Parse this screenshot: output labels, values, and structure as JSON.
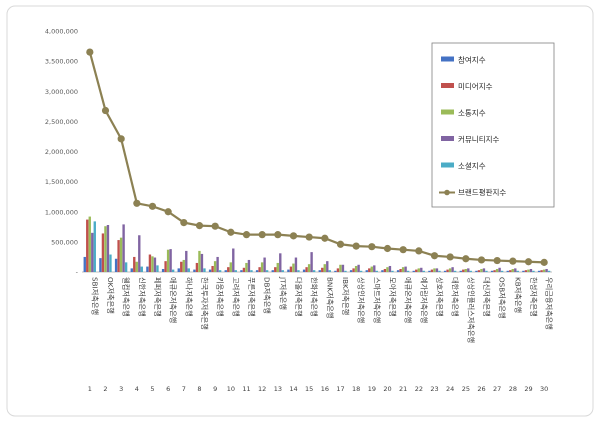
{
  "chart_data": {
    "type": "bar",
    "title": "",
    "xlabel": "",
    "ylabel": "",
    "ylim": [
      0,
      4000000
    ],
    "yticks": [
      "-",
      "500,000",
      "1,000,000",
      "1,500,000",
      "2,000,000",
      "2,500,000",
      "3,000,000",
      "3,500,000",
      "4,000,000"
    ],
    "grid": false,
    "legend_position": "right",
    "categories": [
      "SBI저축은행",
      "OK저축은행",
      "웰컴저축은행",
      "신한저축은행",
      "페퍼저축은행",
      "애큐온저축은행",
      "하나저축은행",
      "한국투자저축은행",
      "키움저축은행",
      "고려저축은행",
      "푸른저축은행",
      "DB저축은행",
      "JT저축은행",
      "다올저축은행",
      "한화저축은행",
      "BNK저축은행",
      "IBK저축은행",
      "상상인저축은행",
      "스마트저축은행",
      "모아저축은행",
      "애큐온저축은행",
      "예가람저축은행",
      "상호저축은행",
      "대한저축은행",
      "상상인플러스저축은행",
      "대신저축은행",
      "OSB저축은행",
      "KB저축은행",
      "한성저축은행",
      "우리금융저축은행"
    ],
    "ranks": [
      "1",
      "2",
      "3",
      "4",
      "5",
      "6",
      "7",
      "8",
      "9",
      "10",
      "11",
      "12",
      "13",
      "14",
      "15",
      "16",
      "17",
      "18",
      "19",
      "20",
      "21",
      "22",
      "23",
      "24",
      "25",
      "26",
      "27",
      "28",
      "29",
      "30"
    ],
    "series": [
      {
        "name": "참여지수",
        "color": "#4472C4",
        "values": [
          250000,
          230000,
          220000,
          60000,
          90000,
          50000,
          60000,
          40000,
          40000,
          30000,
          30000,
          30000,
          30000,
          40000,
          40000,
          30000,
          20000,
          30000,
          30000,
          30000,
          30000,
          20000,
          20000,
          20000,
          20000,
          20000,
          20000,
          20000,
          20000,
          20000
        ]
      },
      {
        "name": "미디어지수",
        "color": "#C0504D",
        "values": [
          870000,
          640000,
          530000,
          250000,
          290000,
          180000,
          170000,
          150000,
          100000,
          80000,
          70000,
          80000,
          80000,
          90000,
          80000,
          70000,
          60000,
          60000,
          60000,
          50000,
          50000,
          40000,
          40000,
          40000,
          40000,
          30000,
          30000,
          30000,
          30000,
          30000
        ]
      },
      {
        "name": "소통지수",
        "color": "#9BBB59",
        "values": [
          920000,
          760000,
          570000,
          170000,
          260000,
          370000,
          200000,
          350000,
          180000,
          160000,
          150000,
          160000,
          150000,
          140000,
          130000,
          130000,
          120000,
          100000,
          90000,
          80000,
          80000,
          60000,
          60000,
          60000,
          50000,
          50000,
          50000,
          50000,
          40000,
          40000
        ]
      },
      {
        "name": "커뮤니티지수",
        "color": "#8064A2",
        "values": [
          650000,
          780000,
          790000,
          610000,
          240000,
          380000,
          350000,
          300000,
          250000,
          390000,
          200000,
          240000,
          310000,
          240000,
          330000,
          180000,
          120000,
          120000,
          110000,
          100000,
          90000,
          70000,
          60000,
          80000,
          60000,
          60000,
          70000,
          60000,
          50000,
          50000
        ]
      },
      {
        "name": "소셜지수",
        "color": "#4BACC6",
        "values": [
          840000,
          290000,
          160000,
          90000,
          110000,
          40000,
          60000,
          60000,
          30000,
          30000,
          30000,
          30000,
          30000,
          30000,
          30000,
          30000,
          20000,
          20000,
          20000,
          20000,
          20000,
          20000,
          20000,
          20000,
          20000,
          20000,
          20000,
          20000,
          20000,
          20000
        ]
      }
    ],
    "line_series": {
      "name": "브랜드평판지수",
      "color": "#8C8153",
      "values": [
        3650000,
        2680000,
        2210000,
        1140000,
        1090000,
        1000000,
        820000,
        770000,
        760000,
        660000,
        620000,
        620000,
        620000,
        600000,
        580000,
        560000,
        460000,
        430000,
        420000,
        390000,
        370000,
        350000,
        270000,
        250000,
        220000,
        200000,
        190000,
        180000,
        170000,
        160000
      ]
    }
  }
}
